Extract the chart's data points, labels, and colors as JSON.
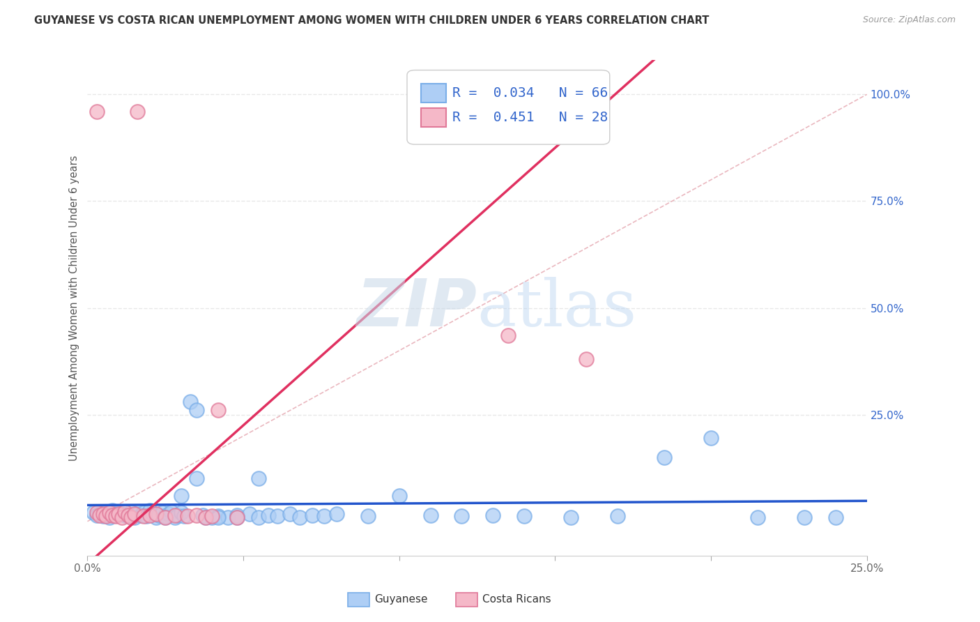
{
  "title": "GUYANESE VS COSTA RICAN UNEMPLOYMENT AMONG WOMEN WITH CHILDREN UNDER 6 YEARS CORRELATION CHART",
  "source": "Source: ZipAtlas.com",
  "ylabel": "Unemployment Among Women with Children Under 6 years",
  "xmin": 0.0,
  "xmax": 0.25,
  "ymin": -0.08,
  "ymax": 1.08,
  "guyanese_fill": "#aecef5",
  "guyanese_edge": "#7aaee8",
  "costa_fill": "#f5b8c8",
  "costa_edge": "#e07898",
  "guyanese_line_color": "#2255cc",
  "costa_line_color": "#e03060",
  "diagonal_color": "#e8b0b8",
  "legend_R1": "0.034",
  "legend_N1": "66",
  "legend_R2": "0.451",
  "legend_N2": "28",
  "text_color_blue": "#3366cc",
  "background_color": "#ffffff",
  "grid_color": "#e8e8e8",
  "guyanese_x": [
    0.002,
    0.003,
    0.004,
    0.005,
    0.006,
    0.007,
    0.008,
    0.009,
    0.01,
    0.011,
    0.012,
    0.013,
    0.014,
    0.015,
    0.016,
    0.017,
    0.018,
    0.019,
    0.02,
    0.021,
    0.022,
    0.023,
    0.024,
    0.025,
    0.026,
    0.027,
    0.028,
    0.029,
    0.03,
    0.031,
    0.033,
    0.035,
    0.037,
    0.04,
    0.042,
    0.045,
    0.048,
    0.052,
    0.055,
    0.058,
    0.061,
    0.065,
    0.068,
    0.072,
    0.076,
    0.08,
    0.09,
    0.1,
    0.11,
    0.12,
    0.13,
    0.14,
    0.155,
    0.17,
    0.185,
    0.2,
    0.215,
    0.23,
    0.24,
    0.025,
    0.03,
    0.035,
    0.038,
    0.042,
    0.048,
    0.055
  ],
  "guyanese_y": [
    0.02,
    0.015,
    0.018,
    0.012,
    0.022,
    0.01,
    0.025,
    0.015,
    0.02,
    0.018,
    0.015,
    0.012,
    0.022,
    0.01,
    0.018,
    0.015,
    0.02,
    0.012,
    0.025,
    0.018,
    0.01,
    0.015,
    0.02,
    0.012,
    0.018,
    0.022,
    0.01,
    0.015,
    0.02,
    0.012,
    0.28,
    0.26,
    0.015,
    0.01,
    0.012,
    0.01,
    0.015,
    0.018,
    0.01,
    0.015,
    0.012,
    0.018,
    0.01,
    0.015,
    0.012,
    0.018,
    0.012,
    0.06,
    0.015,
    0.012,
    0.015,
    0.012,
    0.01,
    0.012,
    0.15,
    0.195,
    0.01,
    0.01,
    0.01,
    0.01,
    0.06,
    0.1,
    0.01,
    0.01,
    0.01,
    0.1
  ],
  "costa_x": [
    0.003,
    0.016,
    0.003,
    0.004,
    0.005,
    0.006,
    0.007,
    0.008,
    0.009,
    0.01,
    0.011,
    0.012,
    0.013,
    0.014,
    0.015,
    0.018,
    0.02,
    0.022,
    0.025,
    0.028,
    0.032,
    0.035,
    0.038,
    0.042,
    0.048,
    0.135,
    0.16,
    0.04
  ],
  "costa_y": [
    0.96,
    0.96,
    0.02,
    0.015,
    0.018,
    0.012,
    0.02,
    0.015,
    0.012,
    0.018,
    0.01,
    0.022,
    0.015,
    0.01,
    0.018,
    0.012,
    0.015,
    0.018,
    0.01,
    0.015,
    0.012,
    0.015,
    0.01,
    0.26,
    0.01,
    0.435,
    0.38,
    0.012
  ],
  "guyanese_line_x": [
    0.0,
    0.25
  ],
  "guyanese_line_y": [
    0.038,
    0.048
  ],
  "costa_line_x": [
    0.0,
    0.25
  ],
  "costa_line_y": [
    -0.08,
    1.08
  ]
}
